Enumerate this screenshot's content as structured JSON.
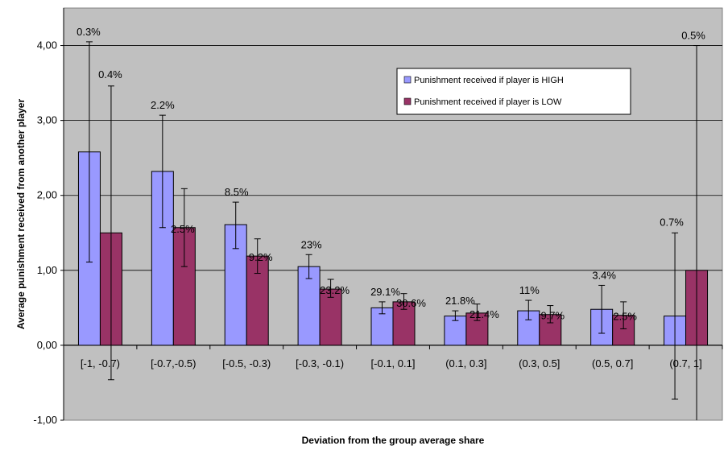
{
  "chart_data": {
    "type": "bar",
    "xlabel": "Deviation from the group average share",
    "ylabel": "Average punishment received from another player",
    "ylim": [
      -1,
      4.5
    ],
    "yticks": [
      "-1,00",
      "0,00",
      "1,00",
      "2,00",
      "3,00",
      "4,00"
    ],
    "ytick_values": [
      -1,
      0,
      1,
      2,
      3,
      4
    ],
    "grid": true,
    "legend_position": "upper-right",
    "categories": [
      "[-1, -0.7)",
      "[-0.7,-0.5)",
      "[-0.5, -0.3)",
      "[-0.3, -0.1)",
      "[-0.1, 0.1]",
      "(0.1, 0.3]",
      "(0.3, 0.5]",
      "(0.5, 0.7]",
      "(0.7, 1]"
    ],
    "series": [
      {
        "name": "Punishment received if player is HIGH",
        "color": "#9999ff",
        "values": [
          2.58,
          2.32,
          1.61,
          1.05,
          0.5,
          0.39,
          0.46,
          0.48,
          0.39
        ],
        "err_low": [
          1.11,
          1.57,
          1.29,
          0.89,
          0.42,
          0.33,
          0.34,
          0.16,
          -0.72
        ],
        "err_high": [
          4.05,
          3.07,
          1.91,
          1.21,
          0.58,
          0.46,
          0.6,
          0.8,
          1.5
        ],
        "labels": [
          "0.3%",
          "2.2%",
          "8.5%",
          "23%",
          "29.1%",
          "21.8%",
          "11%",
          "3.4%",
          "0.7%"
        ]
      },
      {
        "name": "Punishment received if player is LOW",
        "color": "#993366",
        "values": [
          1.5,
          1.57,
          1.19,
          0.75,
          0.58,
          0.43,
          0.41,
          0.4,
          1.0
        ],
        "err_low": [
          -0.46,
          1.05,
          0.96,
          0.64,
          0.48,
          0.33,
          0.3,
          0.22,
          -1.0
        ],
        "err_high": [
          3.46,
          2.09,
          1.42,
          0.88,
          0.69,
          0.55,
          0.53,
          0.58,
          4.0
        ],
        "labels": [
          "0.4%",
          "2.5%",
          "9.2%",
          "23.2%",
          "30.6%",
          "21.4%",
          "9.7%",
          "2.5%",
          "0.5%"
        ]
      }
    ]
  }
}
